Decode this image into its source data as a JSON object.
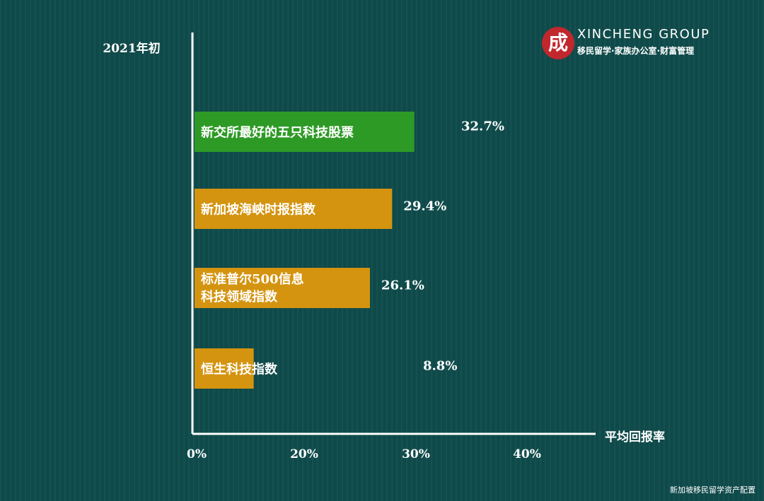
{
  "chart_data": {
    "type": "bar",
    "orientation": "horizontal",
    "title": "2021年初",
    "xlabel": "平均回报率",
    "xticks": [
      "0%",
      "20%",
      "30%",
      "40%"
    ],
    "categories": [
      "新交所最好的五只科技股票",
      "新加坡海峡时报指数",
      "标准普尔500信息\n科技领域指数",
      "恒生科技指数"
    ],
    "values": [
      32.7,
      29.4,
      26.1,
      8.8
    ],
    "value_labels": [
      "32.7%",
      "29.4%",
      "26.1%",
      "8.8%"
    ],
    "bar_colors": [
      "#2e9a26",
      "#d49410",
      "#d49410",
      "#d49410"
    ],
    "grid": false
  },
  "branding": {
    "seal_text": "成",
    "name": "XINCHENG GROUP",
    "tagline": "移民留学·家族办公室·财富管理"
  },
  "watermark": "新加坡移民留学资产配置"
}
